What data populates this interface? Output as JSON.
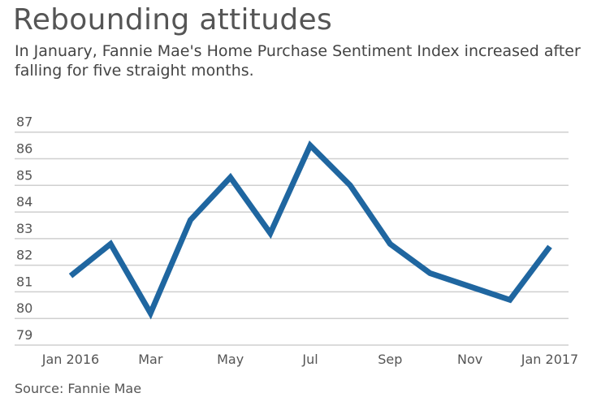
{
  "chart_data": {
    "type": "line",
    "title": "Rebounding attitudes",
    "subtitle": "In January, Fannie Mae's Home Purchase Sentiment Index increased after falling for five straight months.",
    "source": "Source: Fannie Mae",
    "x": [
      "Jan 2016",
      "Feb 2016",
      "Mar 2016",
      "Apr 2016",
      "May 2016",
      "Jun 2016",
      "Jul 2016",
      "Aug 2016",
      "Sep 2016",
      "Oct 2016",
      "Nov 2016",
      "Dec 2016",
      "Jan 2017"
    ],
    "xtick_labels": [
      "Jan 2016",
      "",
      "Mar",
      "",
      "May",
      "",
      "Jul",
      "",
      "Sep",
      "",
      "Nov",
      "",
      "Jan 2017"
    ],
    "series": [
      {
        "values": [
          81.6,
          82.8,
          80.2,
          83.7,
          85.3,
          83.2,
          86.5,
          85.0,
          82.8,
          81.7,
          81.2,
          80.7,
          82.7
        ],
        "color": "#1f66a0"
      }
    ],
    "ylim": [
      79,
      87
    ],
    "yticks": [
      79,
      80,
      81,
      82,
      83,
      84,
      85,
      86,
      87
    ],
    "grid": true,
    "xlabel": "",
    "ylabel": ""
  }
}
